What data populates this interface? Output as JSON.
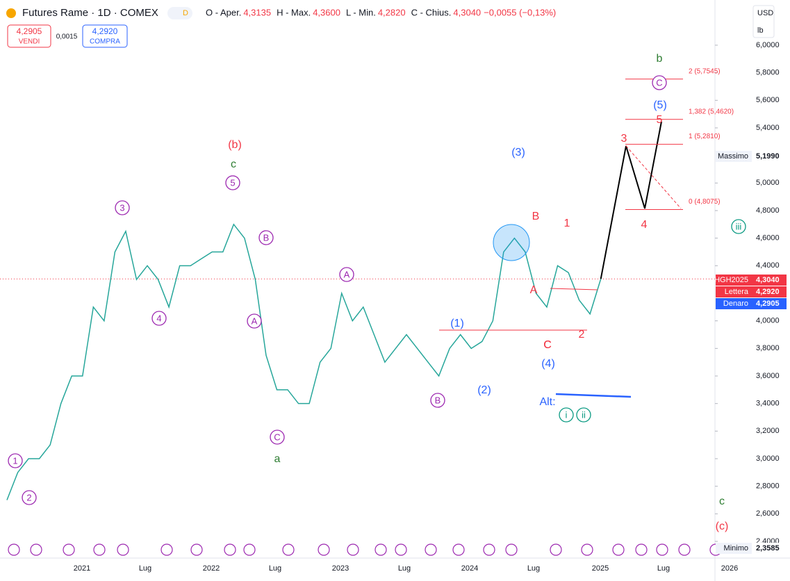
{
  "header": {
    "symbol": "Futures Rame · 1D · COMEX",
    "badge": "D",
    "ohlc": [
      {
        "label": "O - Aper.",
        "value": "4,3135"
      },
      {
        "label": "H - Max.",
        "value": "4,3600"
      },
      {
        "label": "L - Min.",
        "value": "4,2820"
      },
      {
        "label": "C - Chius.",
        "value": "4,3040"
      }
    ],
    "change": "−0,0055 (−0,13%)",
    "sell": {
      "price": "4,2905",
      "label": "VENDI"
    },
    "spread": "0,0015",
    "buy": {
      "price": "4,2920",
      "label": "COMPRA"
    }
  },
  "axis": {
    "currency": "USD",
    "unit": "lb",
    "yticks": [
      {
        "value": 6.0,
        "label": "6,0000"
      },
      {
        "value": 5.8,
        "label": "5,8000"
      },
      {
        "value": 5.6,
        "label": "5,6000"
      },
      {
        "value": 5.4,
        "label": "5,4000"
      },
      {
        "value": 5.0,
        "label": "5,0000"
      },
      {
        "value": 4.8,
        "label": "4,8000"
      },
      {
        "value": 4.6,
        "label": "4,6000"
      },
      {
        "value": 4.4,
        "label": "4,4000"
      },
      {
        "value": 4.0,
        "label": "4,0000"
      },
      {
        "value": 3.8,
        "label": "3,8000"
      },
      {
        "value": 3.6,
        "label": "3,6000"
      },
      {
        "value": 3.4,
        "label": "3,4000"
      },
      {
        "value": 3.2,
        "label": "3,2000"
      },
      {
        "value": 3.0,
        "label": "3,0000"
      },
      {
        "value": 2.8,
        "label": "2,8000"
      },
      {
        "value": 2.6,
        "label": "2,6000"
      },
      {
        "value": 2.4,
        "label": "2,4000"
      }
    ],
    "ylim": [
      2.4,
      6.0
    ],
    "xlabels": [
      "2021",
      "Lug",
      "2022",
      "Lug",
      "2023",
      "Lug",
      "2024",
      "Lug",
      "2025",
      "Lug",
      "2026"
    ],
    "markers": [
      {
        "name": "Massimo",
        "value": 5.199,
        "label": "5,1990"
      },
      {
        "name": "HGH2025",
        "value": 4.304,
        "label": "4,3040"
      },
      {
        "name": "Lettera",
        "value": 4.292,
        "label": "4,2920"
      },
      {
        "name": "Denaro",
        "value": 4.2905,
        "label": "4,2905"
      },
      {
        "name": "Minimo",
        "value": 2.3585,
        "label": "2,3585"
      }
    ]
  },
  "price": {
    "values": [
      2.7,
      2.9,
      3.0,
      3.0,
      3.1,
      3.4,
      3.6,
      3.6,
      4.1,
      4.0,
      4.5,
      4.65,
      4.3,
      4.4,
      4.3,
      4.1,
      4.4,
      4.4,
      4.45,
      4.5,
      4.5,
      4.7,
      4.6,
      4.3,
      3.75,
      3.5,
      3.5,
      3.4,
      3.4,
      3.7,
      3.8,
      4.2,
      4.0,
      4.1,
      3.9,
      3.7,
      3.8,
      3.9,
      3.8,
      3.7,
      3.6,
      3.8,
      3.9,
      3.8,
      3.85,
      4.0,
      4.5,
      4.6,
      4.5,
      4.2,
      4.1,
      4.4,
      4.35,
      4.15,
      4.05,
      4.304
    ]
  },
  "fib": [
    {
      "label": "2 (5,7545)",
      "value": 5.7545
    },
    {
      "label": "1,382 (5,4620)",
      "value": 5.462
    },
    {
      "label": "1 (5,2810)",
      "value": 5.281
    },
    {
      "label": "0 (4,8075)",
      "value": 4.8075
    }
  ],
  "annotations": [
    "1",
    "2",
    "3",
    "4",
    "5",
    "A",
    "B",
    "C",
    "A",
    "B",
    "C",
    "(b)",
    "c",
    "a",
    "b",
    "(1)",
    "(2)",
    "(3)",
    "(4)",
    "(5)",
    "B",
    "A",
    "C",
    "1",
    "2",
    "3",
    "4",
    "5",
    "C",
    "Alt:",
    "i",
    "ii",
    "iii",
    "c",
    "(c)"
  ]
}
